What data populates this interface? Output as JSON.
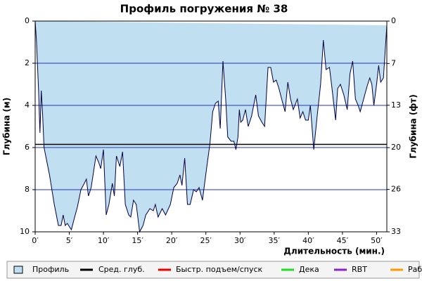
{
  "chart_data": {
    "type": "area",
    "title": "Профиль погружения № 38",
    "y_label": "Глубина (м)",
    "y2_label": "Глубина (фт)",
    "x_label": "Длительность (мин.)",
    "xlim": [
      0,
      51.5
    ],
    "xticks": [
      {
        "value": 0,
        "label": "0′"
      },
      {
        "value": 5,
        "label": "5′"
      },
      {
        "value": 10,
        "label": "10′"
      },
      {
        "value": 15,
        "label": "15′"
      },
      {
        "value": 20,
        "label": "20′"
      },
      {
        "value": 25,
        "label": "25′"
      },
      {
        "value": 30,
        "label": "30′"
      },
      {
        "value": 35,
        "label": "35′"
      },
      {
        "value": 40,
        "label": "40′"
      },
      {
        "value": 45,
        "label": "45′"
      },
      {
        "value": 50,
        "label": "50′"
      }
    ],
    "ylim": [
      0,
      10
    ],
    "yticks": [
      0,
      2,
      4,
      6,
      8,
      10
    ],
    "y2lim": [
      0,
      32.8
    ],
    "y2ticks": [
      0,
      {
        "value": 6.6,
        "label": "7"
      },
      {
        "value": 13.1,
        "label": "13"
      },
      {
        "value": 19.7,
        "label": "20"
      },
      {
        "value": 26.2,
        "label": "26"
      },
      {
        "value": 32.8,
        "label": "33"
      }
    ],
    "grid": true,
    "grid_color": "#2233cc",
    "x": [
      0,
      0.2,
      0.5,
      0.7,
      0.9,
      1.1,
      1.3,
      2.1,
      2.8,
      3.4,
      3.8,
      4.1,
      4.4,
      4.7,
      5.3,
      5.7,
      6.2,
      6.7,
      7.2,
      7.5,
      7.8,
      8.2,
      8.9,
      9.3,
      9.6,
      10,
      10.4,
      10.8,
      11.3,
      11.6,
      11.9,
      12.4,
      12.8,
      13.2,
      13.7,
      14,
      14.4,
      14.8,
      15.3,
      15.8,
      16.2,
      16.8,
      17.3,
      17.6,
      18,
      18.6,
      19.1,
      19.8,
      20.3,
      20.8,
      21.2,
      21.5,
      21.9,
      22.3,
      22.7,
      23.2,
      23.6,
      24,
      24.5,
      25.1,
      25.6,
      26,
      26.4,
      26.8,
      27.1,
      27.5,
      27.9,
      28.2,
      28.7,
      29.1,
      29.4,
      29.7,
      29.9,
      30.1,
      30.4,
      30.8,
      31.2,
      31.7,
      32.3,
      32.7,
      33.2,
      33.6,
      34.1,
      34.5,
      34.9,
      35.3,
      35.7,
      36.1,
      36.6,
      37,
      37.4,
      37.8,
      38.4,
      38.8,
      39.2,
      39.6,
      40,
      40.3,
      40.8,
      41.3,
      41.8,
      42.2,
      42.6,
      43.1,
      43.4,
      44,
      44.3,
      44.7,
      45.2,
      45.7,
      46.1,
      46.5,
      46.9,
      47.3,
      47.6,
      48.1,
      48.6,
      49,
      49.3,
      49.6,
      50,
      50.3,
      50.6,
      51,
      51.3,
      51.5
    ],
    "series": [
      {
        "name": "Профиль",
        "color": "#c0dff0",
        "line_color": "#000044",
        "values": [
          0,
          1,
          3.3,
          5.3,
          3.3,
          4.5,
          6,
          7.3,
          8.7,
          9.7,
          9.7,
          9.2,
          9.7,
          9.6,
          9.9,
          9.4,
          8.8,
          8,
          7.7,
          7.5,
          8.3,
          7.9,
          6.4,
          6.7,
          7,
          6.1,
          9.2,
          8.7,
          7.7,
          8.3,
          6.4,
          6.9,
          6.2,
          8.7,
          9.2,
          9.3,
          8.5,
          8.7,
          10,
          9.7,
          9.2,
          8.9,
          9,
          8.7,
          9.3,
          8.9,
          9.2,
          8.7,
          7.9,
          7.7,
          7.3,
          7.8,
          6.5,
          8.7,
          8.7,
          8,
          8.1,
          7.9,
          8.5,
          7,
          5.8,
          4.3,
          3.9,
          3.8,
          5.1,
          1.9,
          3.7,
          5.5,
          5.7,
          5.7,
          6.1,
          5.5,
          4.2,
          4.8,
          4.7,
          4.2,
          5,
          4.5,
          3.5,
          4.5,
          4.8,
          5,
          2.2,
          2.2,
          2.9,
          2.8,
          3.2,
          3.7,
          4.3,
          2.9,
          3.7,
          4.2,
          3.7,
          4.6,
          4.3,
          4.7,
          4.7,
          4,
          6.1,
          4.5,
          3,
          0.9,
          2.3,
          2.2,
          3,
          4.7,
          3.2,
          3,
          3.5,
          4.2,
          2.5,
          1.9,
          3.7,
          4,
          4.3,
          3.7,
          3.1,
          2.7,
          3,
          4,
          3,
          2.1,
          2.9,
          2.7,
          1.2,
          0.2
        ]
      }
    ],
    "average": {
      "name": "Сред. глуб.",
      "color": "#000000",
      "value": 5.85
    },
    "legend": [
      {
        "name": "Быстр. подъем/спуск",
        "color": "#ee0000"
      },
      {
        "name": "Дека",
        "color": "#22dd22"
      },
      {
        "name": "RBT",
        "color": "#8822cc"
      },
      {
        "name": "Раб.",
        "color": "#ff9900"
      }
    ]
  }
}
